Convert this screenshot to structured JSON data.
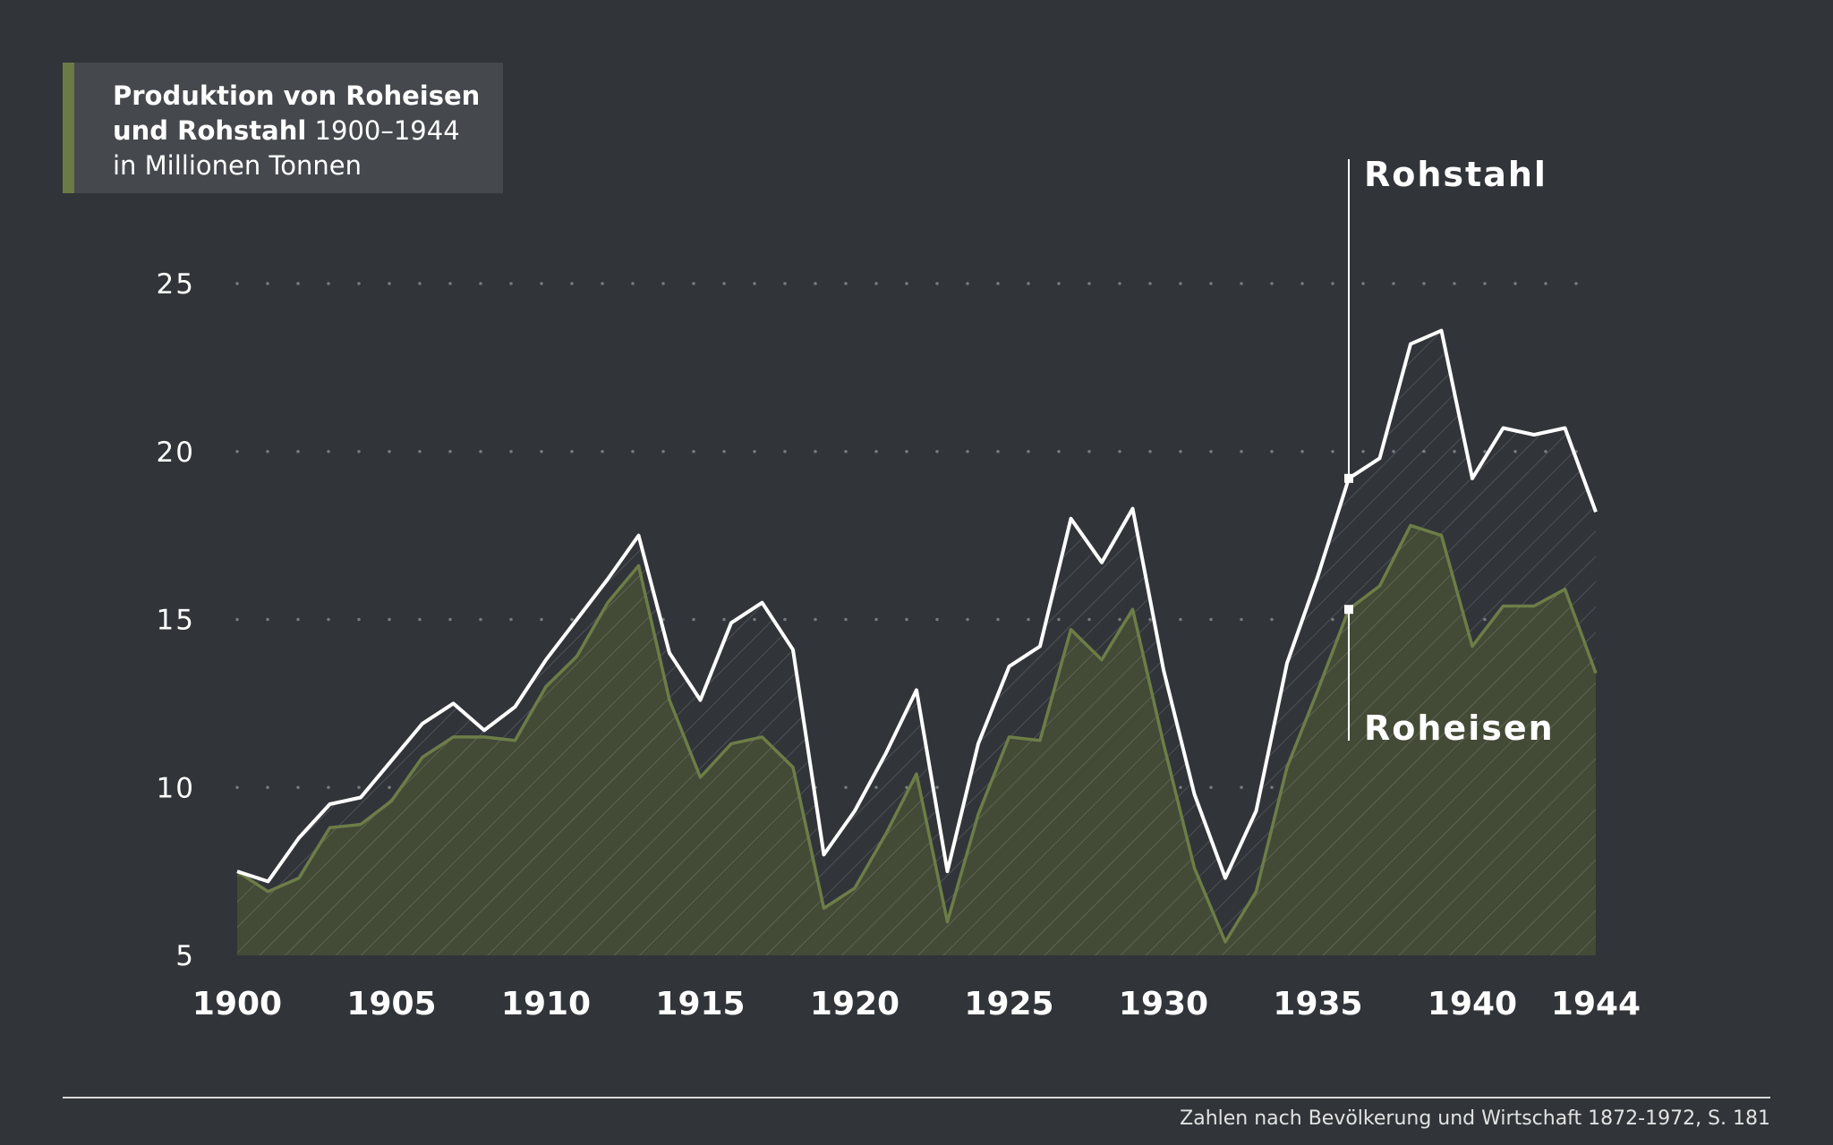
{
  "title": {
    "bold_line1": "Produktion von Roheisen",
    "bold_line2": "und Rohstahl",
    "years": " 1900–1944",
    "unit_line": "in Millionen Tonnen"
  },
  "source": "Zahlen nach Bevölkerung und Wirtschaft 1872-1972, S. 181",
  "colors": {
    "background": "#313539",
    "title_box": "#45494d",
    "accent_green": "#6b7b45",
    "roheisen_line": "#6d7d47",
    "roheisen_fill": "#434a36",
    "rohstahl_line": "#ffffff"
  },
  "chart_data": {
    "type": "area",
    "title": "Produktion von Roheisen und Rohstahl 1900–1944",
    "ylabel": "in Millionen Tonnen",
    "xlabel": "",
    "xlim": [
      1900,
      1944
    ],
    "ylim": [
      5,
      25
    ],
    "yticks": [
      "5",
      "10",
      "15",
      "20",
      "25"
    ],
    "xticks": [
      "1900",
      "1905",
      "1910",
      "1915",
      "1920",
      "1925",
      "1930",
      "1935",
      "1940",
      "1944"
    ],
    "grid": "horizontal dotted",
    "x": [
      1900,
      1901,
      1902,
      1903,
      1904,
      1905,
      1906,
      1907,
      1908,
      1909,
      1910,
      1911,
      1912,
      1913,
      1914,
      1915,
      1916,
      1917,
      1918,
      1919,
      1920,
      1921,
      1922,
      1923,
      1924,
      1925,
      1926,
      1927,
      1928,
      1929,
      1930,
      1931,
      1932,
      1933,
      1934,
      1935,
      1936,
      1937,
      1938,
      1939,
      1940,
      1941,
      1942,
      1943,
      1944
    ],
    "series": [
      {
        "name": "Rohstahl",
        "values": [
          7.5,
          7.2,
          8.5,
          9.5,
          9.7,
          10.8,
          11.9,
          12.5,
          11.7,
          12.4,
          13.8,
          15.0,
          16.2,
          17.5,
          14.0,
          12.6,
          14.9,
          15.5,
          14.1,
          8.0,
          9.3,
          11.0,
          12.9,
          7.5,
          11.3,
          13.6,
          14.2,
          18.0,
          16.7,
          18.3,
          13.5,
          9.8,
          7.3,
          9.3,
          13.7,
          16.3,
          19.2,
          19.8,
          23.2,
          23.6,
          19.2,
          20.7,
          20.5,
          20.7,
          18.2
        ]
      },
      {
        "name": "Roheisen",
        "values": [
          7.5,
          6.9,
          7.3,
          8.8,
          8.9,
          9.6,
          10.9,
          11.5,
          11.5,
          11.4,
          13.0,
          13.9,
          15.5,
          16.6,
          12.6,
          10.3,
          11.3,
          11.5,
          10.6,
          6.4,
          7.0,
          8.6,
          10.4,
          6.0,
          9.2,
          11.5,
          11.4,
          14.7,
          13.8,
          15.3,
          11.3,
          7.6,
          5.4,
          6.9,
          10.6,
          12.9,
          15.3,
          16.0,
          17.8,
          17.5,
          14.2,
          15.4,
          15.4,
          15.9,
          13.4
        ]
      }
    ]
  }
}
